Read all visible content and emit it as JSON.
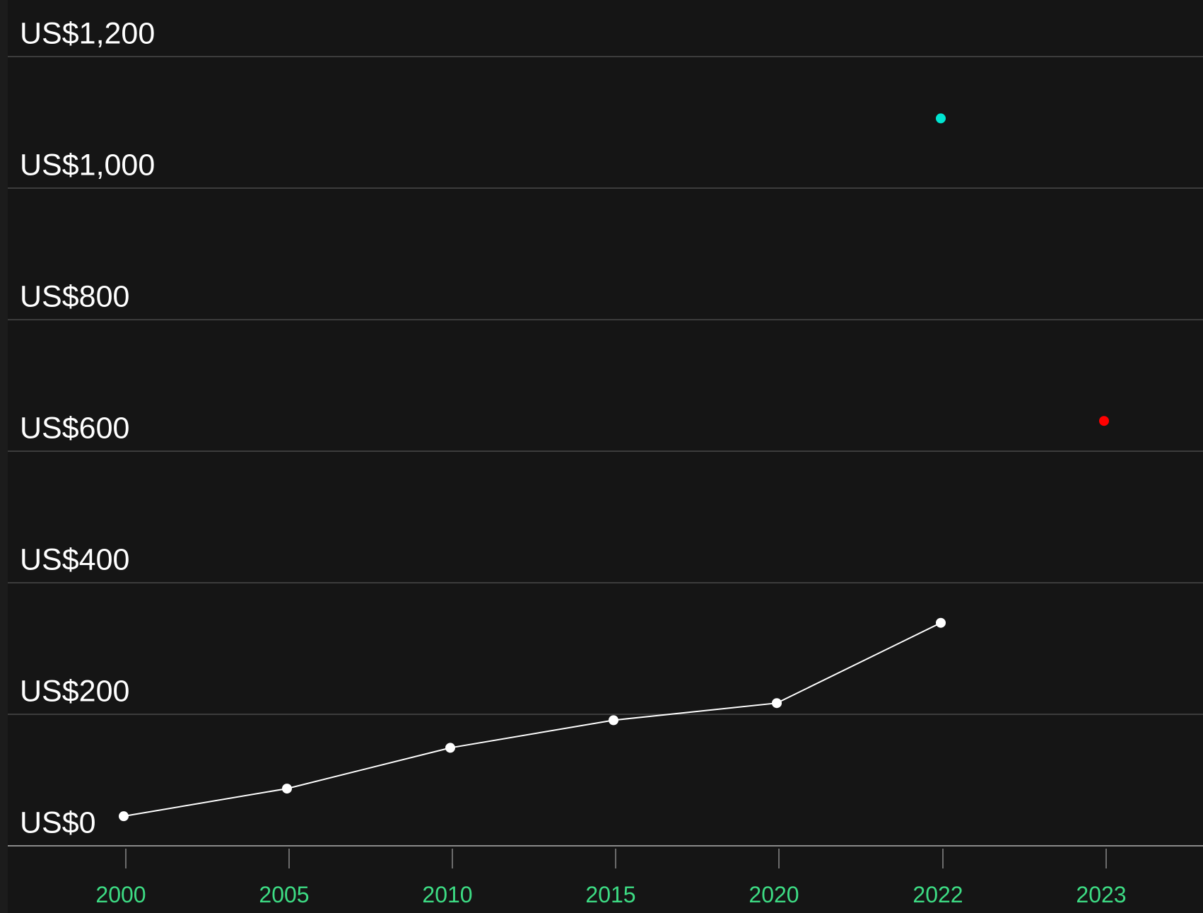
{
  "chart_data": {
    "type": "line",
    "categories": [
      "2000",
      "2005",
      "2010",
      "2015",
      "2020",
      "2022",
      "2023"
    ],
    "y_ticks": [
      "US$0",
      "US$200",
      "US$400",
      "US$600",
      "US$800",
      "US$1,000",
      "US$1,200"
    ],
    "ylim": [
      0,
      1200
    ],
    "grid": true,
    "series": [
      {
        "values": [
          45,
          87,
          149,
          191,
          217,
          339,
          null
        ],
        "color": "#ffffff",
        "style": "line-with-markers"
      },
      {
        "values": [
          null,
          null,
          null,
          null,
          null,
          1106,
          null
        ],
        "color": "#00e5d1",
        "style": "point"
      },
      {
        "values": [
          null,
          null,
          null,
          null,
          null,
          null,
          646
        ],
        "color": "#ff0000",
        "style": "point"
      }
    ]
  }
}
